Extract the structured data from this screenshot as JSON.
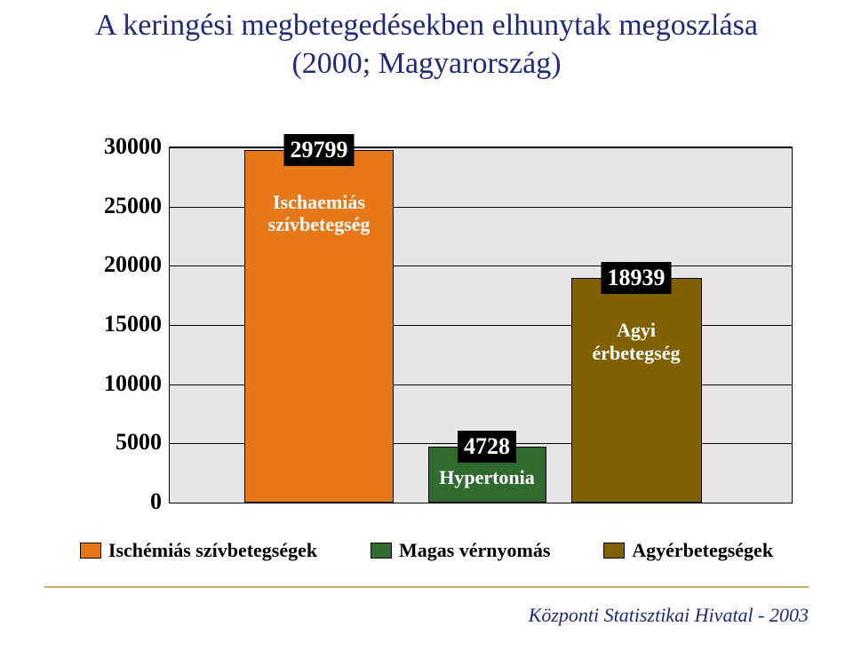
{
  "title_line1": "A keringési megbetegedésekben elhunytak megoszlása",
  "title_line2": "(2000; Magyarország)",
  "chart": {
    "type": "bar",
    "ylim": [
      0,
      30000
    ],
    "ytick_step": 5000,
    "yticks": [
      "0",
      "5000",
      "10000",
      "15000",
      "20000",
      "25000",
      "30000"
    ],
    "plot_background": "#e6e6e6",
    "grid_color": "#000000",
    "plot_border_color": "#000000",
    "tick_font_size": 26,
    "bars": [
      {
        "key": "ischaemias",
        "value": 29799,
        "value_label": "29799",
        "caption_lines": [
          "Ischaemiás",
          "szívbetegség"
        ],
        "color": "#e77817",
        "x_center_pct": 24,
        "width_pct": 24
      },
      {
        "key": "hypertonia",
        "value": 4728,
        "value_label": "4728",
        "caption_lines": [
          "Hypertonia"
        ],
        "caption_below_value": true,
        "color": "#2f6b2f",
        "x_center_pct": 51,
        "width_pct": 19
      },
      {
        "key": "agyi",
        "value": 18939,
        "value_label": "18939",
        "caption_lines": [
          "Agyi",
          "érbetegség"
        ],
        "color": "#806000",
        "x_center_pct": 75,
        "width_pct": 21
      }
    ]
  },
  "legend": {
    "items": [
      {
        "label": "Ischémiás szívbetegségek",
        "color": "#e77817"
      },
      {
        "label": "Magas vérnyomás",
        "color": "#2f6b2f"
      },
      {
        "label": "Agyérbetegségek",
        "color": "#806000"
      }
    ],
    "font_size": 22
  },
  "divider_color": "#bfae66",
  "source_text": "Központi Statisztikai Hivatal - 2003",
  "source_color": "#1f2a7a",
  "title_color": "#1f2a7a"
}
